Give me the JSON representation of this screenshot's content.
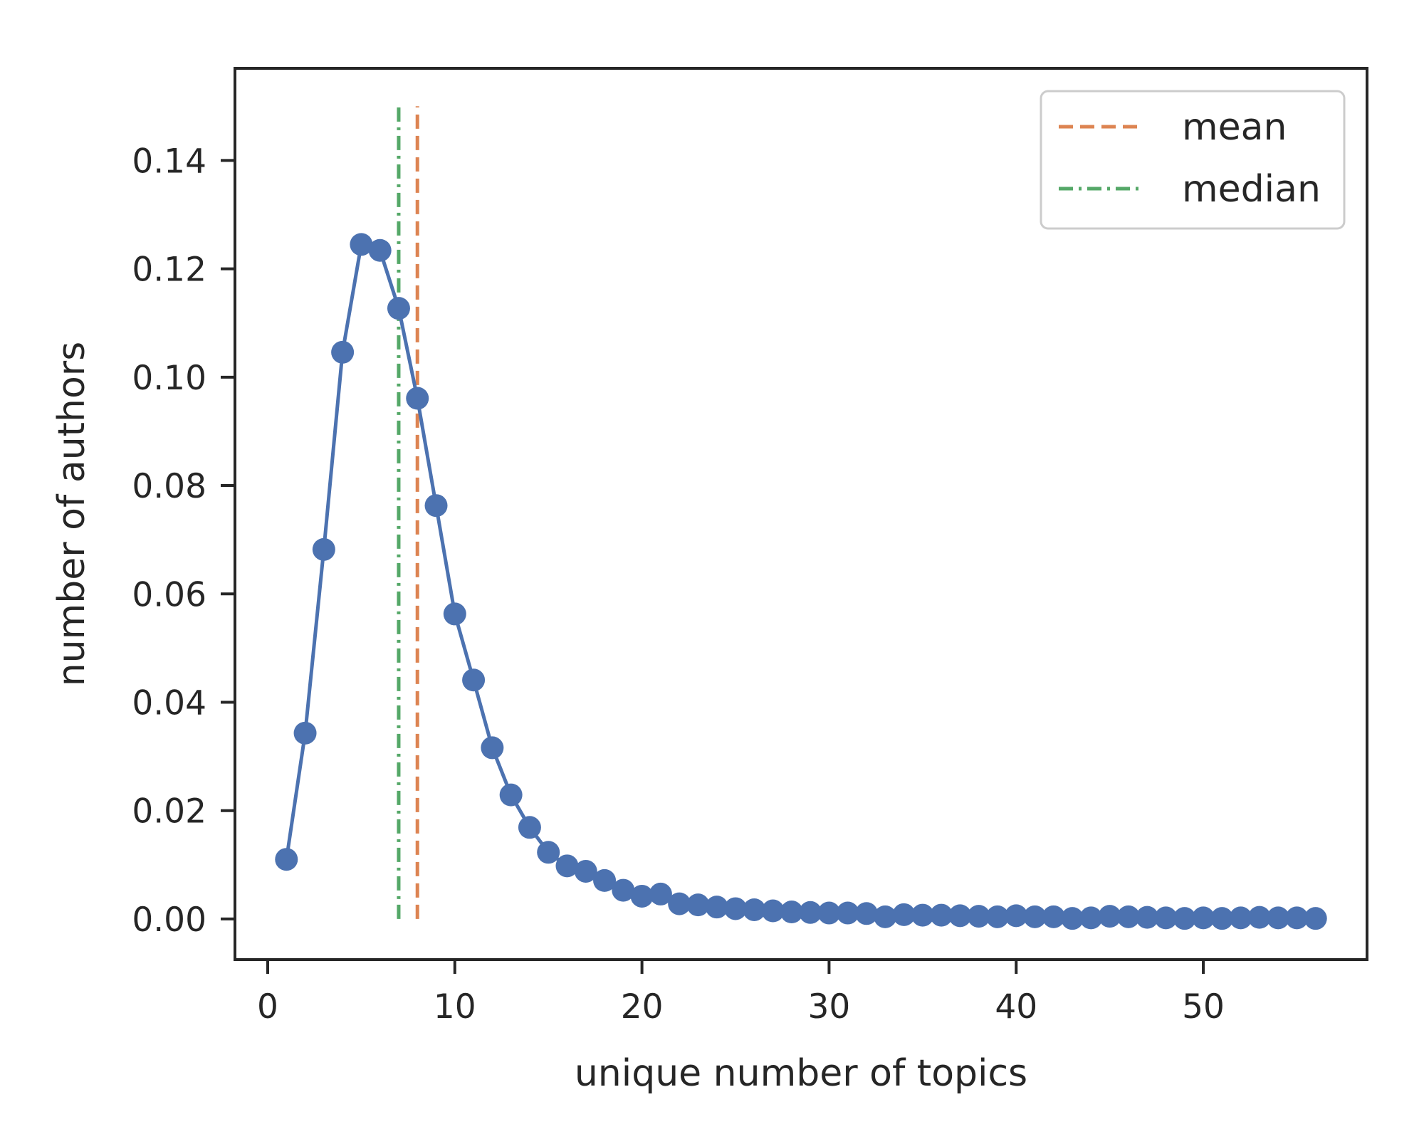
{
  "chart_data": {
    "type": "line",
    "xlabel": "unique number of topics",
    "ylabel": "number of authors",
    "xlim": [
      -1.75,
      58.75
    ],
    "ylim": [
      -0.0075,
      0.157
    ],
    "xticks": [
      0,
      10,
      20,
      30,
      40,
      50
    ],
    "xtick_labels": [
      "0",
      "10",
      "20",
      "30",
      "40",
      "50"
    ],
    "yticks": [
      0.0,
      0.02,
      0.04,
      0.06,
      0.08,
      0.1,
      0.12,
      0.14
    ],
    "ytick_labels": [
      "0.00",
      "0.02",
      "0.04",
      "0.06",
      "0.08",
      "0.10",
      "0.12",
      "0.14"
    ],
    "grid": false,
    "legend_position": "top-right",
    "series": [
      {
        "color": "#4c72b0",
        "x": [
          1,
          2,
          3,
          4,
          5,
          6,
          7,
          8,
          9,
          10,
          11,
          12,
          13,
          14,
          15,
          16,
          17,
          18,
          19,
          20,
          21,
          22,
          23,
          24,
          25,
          26,
          27,
          28,
          29,
          30,
          31,
          32,
          33,
          34,
          35,
          36,
          37,
          38,
          39,
          40,
          41,
          42,
          43,
          44,
          45,
          46,
          47,
          48,
          49,
          50,
          51,
          52,
          53,
          54,
          55,
          56
        ],
        "y": [
          0.011,
          0.0343,
          0.0682,
          0.1046,
          0.1245,
          0.1234,
          0.1127,
          0.0961,
          0.0763,
          0.0563,
          0.0441,
          0.0316,
          0.0229,
          0.0169,
          0.0123,
          0.0098,
          0.0088,
          0.0071,
          0.0053,
          0.0042,
          0.0046,
          0.0028,
          0.0026,
          0.0022,
          0.0019,
          0.0017,
          0.0015,
          0.0013,
          0.0012,
          0.0011,
          0.0011,
          0.001,
          0.0004,
          0.0008,
          0.0007,
          0.0007,
          0.0006,
          0.0005,
          0.0004,
          0.0006,
          0.0004,
          0.0004,
          0.0001,
          0.0002,
          0.0005,
          0.0004,
          0.0003,
          0.0002,
          0.0001,
          0.0002,
          0.0001,
          0.0002,
          0.0003,
          0.0002,
          0.0002,
          0.0001
        ]
      }
    ],
    "reference_lines": [
      {
        "name": "mean",
        "x": 8.0,
        "y_range": [
          0,
          0.15
        ],
        "color": "#dd8452",
        "style": "dashed"
      },
      {
        "name": "median",
        "x": 7.0,
        "y_range": [
          0,
          0.15
        ],
        "color": "#55a868",
        "style": "dashdot"
      }
    ]
  }
}
